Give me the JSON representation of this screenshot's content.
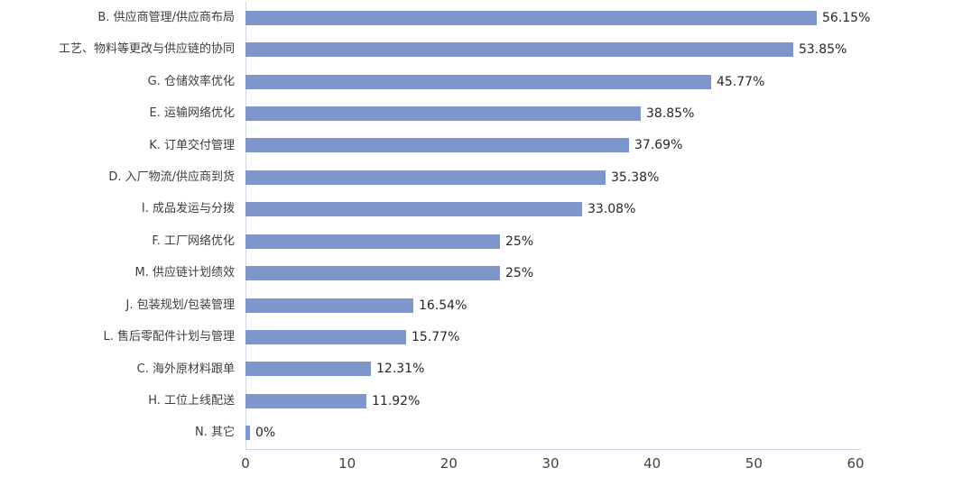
{
  "chart_data": {
    "type": "bar",
    "orientation": "horizontal",
    "title": "",
    "xlabel": "",
    "ylabel": "",
    "categories": [
      "B. 供应商管理/供应商布局",
      "工艺、物料等更改与供应链的协同",
      "G. 仓储效率优化",
      "E. 运输网络优化",
      "K. 订单交付管理",
      "D. 入厂物流/供应商到货",
      "I. 成品发运与分拨",
      "F. 工厂网络优化",
      "M. 供应链计划绩效",
      "J. 包装规划/包装管理",
      "L. 售后零配件计划与管理",
      "C. 海外原材料跟单",
      "H. 工位上线配送",
      "N. 其它"
    ],
    "values": [
      56.15,
      53.85,
      45.77,
      38.85,
      37.69,
      35.38,
      33.08,
      25,
      25,
      16.54,
      15.77,
      12.31,
      11.92,
      0
    ],
    "value_labels": [
      "56.15%",
      "53.85%",
      "45.77%",
      "38.85%",
      "37.69%",
      "35.38%",
      "33.08%",
      "25%",
      "25%",
      "16.54%",
      "15.77%",
      "12.31%",
      "11.92%",
      "0%"
    ],
    "xlim": [
      0,
      60
    ],
    "xticks": [
      "0",
      "10",
      "20",
      "30",
      "40",
      "50",
      "60"
    ],
    "grid": false,
    "legend": false,
    "bar_color": "#7e96cb",
    "axis_line_color": "#ccd8ea",
    "category_label_color": "#3d3d3d",
    "value_label_color": "#262626",
    "tick_label_color": "#3f3f3f",
    "background": "#ffffff"
  }
}
